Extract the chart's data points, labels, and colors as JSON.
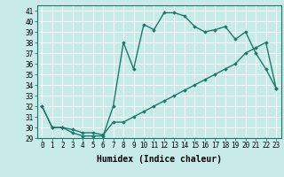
{
  "xlabel": "Humidex (Indice chaleur)",
  "xlim": [
    -0.5,
    23.5
  ],
  "ylim": [
    29,
    41.5
  ],
  "yticks": [
    29,
    30,
    31,
    32,
    33,
    34,
    35,
    36,
    37,
    38,
    39,
    40,
    41
  ],
  "xticks": [
    0,
    1,
    2,
    3,
    4,
    5,
    6,
    7,
    8,
    9,
    10,
    11,
    12,
    13,
    14,
    15,
    16,
    17,
    18,
    19,
    20,
    21,
    22,
    23
  ],
  "line1_x": [
    0,
    1,
    2,
    3,
    4,
    5,
    6,
    7,
    8,
    9,
    10,
    11,
    12,
    13,
    14,
    15,
    16,
    17,
    18,
    19,
    20,
    21,
    22,
    23
  ],
  "line1_y": [
    32,
    30,
    30,
    29.5,
    29.2,
    29.2,
    29.2,
    32,
    38,
    35.5,
    39.7,
    39.2,
    40.8,
    40.8,
    40.5,
    39.5,
    39,
    39.2,
    39.5,
    38.3,
    39,
    37,
    35.5,
    33.7
  ],
  "line2_x": [
    0,
    1,
    2,
    3,
    4,
    5,
    6,
    7,
    8,
    9,
    10,
    11,
    12,
    13,
    14,
    15,
    16,
    17,
    18,
    19,
    20,
    21,
    22,
    23
  ],
  "line2_y": [
    32,
    30,
    30,
    29.8,
    29.5,
    29.5,
    29.3,
    30.5,
    30.5,
    31,
    31.5,
    32,
    32.5,
    33,
    33.5,
    34,
    34.5,
    35,
    35.5,
    36,
    37,
    37.5,
    38,
    33.7
  ],
  "line_color": "#1a7a6a",
  "bg_color": "#c8eae8",
  "grid_color": "#ffffff",
  "marker": "D",
  "marker_size": 1.8,
  "linewidth": 1.0,
  "xlabel_fontsize": 7,
  "tick_fontsize": 5.5
}
